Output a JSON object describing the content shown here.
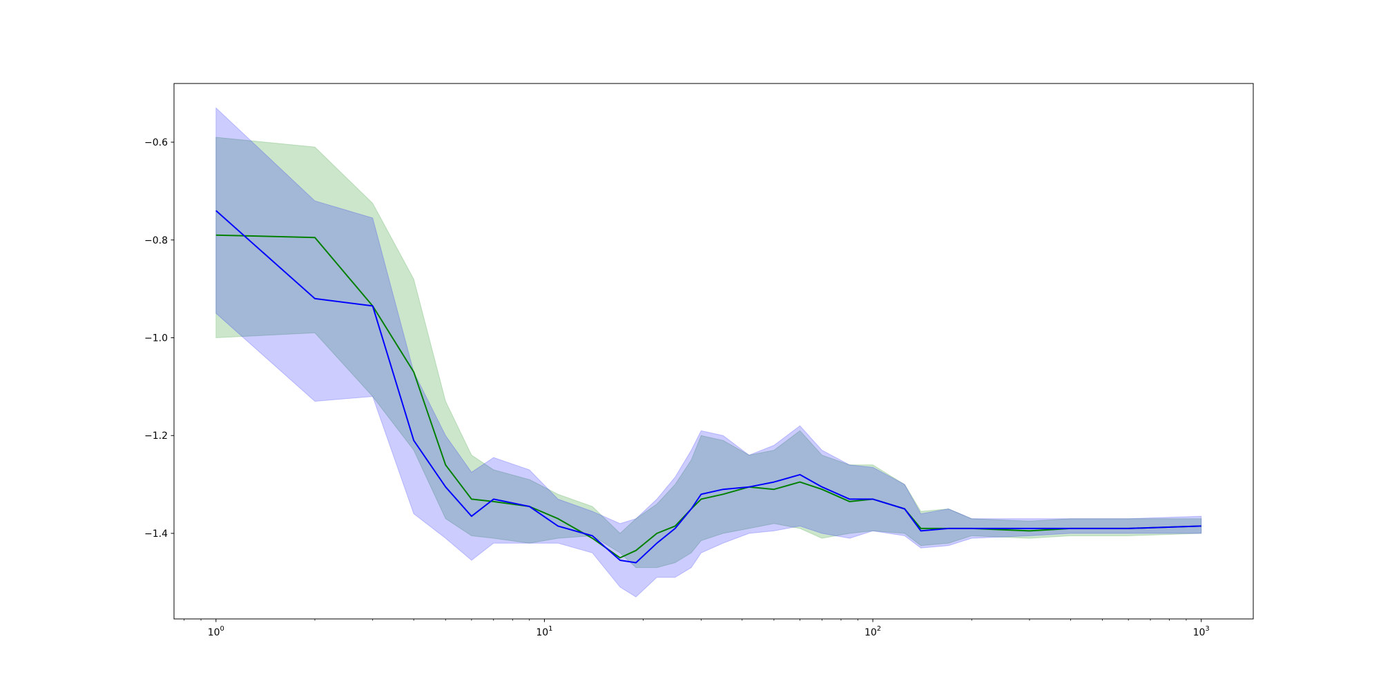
{
  "chart_data": {
    "type": "line",
    "title": "",
    "xlabel": "",
    "ylabel": "",
    "x_scale": "log",
    "xlim": [
      0.745,
      1440
    ],
    "ylim": [
      -1.575,
      -0.48
    ],
    "grid": false,
    "x_ticks": [
      {
        "value": 1,
        "base": "10",
        "exp": "0"
      },
      {
        "value": 10,
        "base": "10",
        "exp": "1"
      },
      {
        "value": 100,
        "base": "10",
        "exp": "2"
      },
      {
        "value": 1000,
        "base": "10",
        "exp": "3"
      }
    ],
    "y_ticks": [
      {
        "value": -0.6,
        "label": "−0.6"
      },
      {
        "value": -0.8,
        "label": "−0.8"
      },
      {
        "value": -1.0,
        "label": "−1.0"
      },
      {
        "value": -1.2,
        "label": "−1.2"
      },
      {
        "value": -1.4,
        "label": "−1.4"
      }
    ],
    "series": [
      {
        "color": "#008000",
        "band_color": "#008000",
        "x": [
          1,
          2,
          3,
          4,
          5,
          6,
          7,
          9,
          11,
          14,
          17,
          19,
          22,
          25,
          28,
          30,
          35,
          42,
          50,
          60,
          70,
          85,
          100,
          125,
          140,
          170,
          200,
          300,
          400,
          600,
          1000
        ],
        "y": [
          -0.79,
          -0.795,
          -0.935,
          -1.07,
          -1.26,
          -1.33,
          -1.335,
          -1.345,
          -1.37,
          -1.41,
          -1.45,
          -1.435,
          -1.4,
          -1.385,
          -1.35,
          -1.33,
          -1.32,
          -1.305,
          -1.31,
          -1.295,
          -1.31,
          -1.335,
          -1.33,
          -1.35,
          -1.39,
          -1.39,
          -1.39,
          -1.395,
          -1.39,
          -1.39,
          -1.385
        ],
        "lower": [
          -1.0,
          -0.99,
          -1.12,
          -1.23,
          -1.37,
          -1.405,
          -1.41,
          -1.42,
          -1.41,
          -1.405,
          -1.44,
          -1.47,
          -1.47,
          -1.46,
          -1.44,
          -1.415,
          -1.4,
          -1.39,
          -1.38,
          -1.39,
          -1.41,
          -1.4,
          -1.395,
          -1.4,
          -1.425,
          -1.42,
          -1.405,
          -1.41,
          -1.405,
          -1.405,
          -1.4
        ],
        "upper": [
          -0.59,
          -0.61,
          -0.725,
          -0.88,
          -1.13,
          -1.24,
          -1.27,
          -1.29,
          -1.32,
          -1.345,
          -1.4,
          -1.37,
          -1.34,
          -1.3,
          -1.25,
          -1.2,
          -1.21,
          -1.24,
          -1.23,
          -1.19,
          -1.24,
          -1.26,
          -1.26,
          -1.3,
          -1.355,
          -1.35,
          -1.37,
          -1.375,
          -1.37,
          -1.37,
          -1.37
        ]
      },
      {
        "color": "#0000ff",
        "band_color": "#0000ff",
        "x": [
          1,
          2,
          3,
          4,
          5,
          6,
          7,
          9,
          11,
          14,
          17,
          19,
          22,
          25,
          28,
          30,
          35,
          42,
          50,
          60,
          70,
          85,
          100,
          125,
          140,
          170,
          200,
          300,
          400,
          600,
          1000
        ],
        "y": [
          -0.74,
          -0.92,
          -0.935,
          -1.21,
          -1.305,
          -1.365,
          -1.33,
          -1.345,
          -1.385,
          -1.405,
          -1.455,
          -1.46,
          -1.42,
          -1.39,
          -1.35,
          -1.32,
          -1.31,
          -1.305,
          -1.295,
          -1.28,
          -1.305,
          -1.33,
          -1.33,
          -1.35,
          -1.395,
          -1.39,
          -1.39,
          -1.39,
          -1.39,
          -1.39,
          -1.385
        ],
        "lower": [
          -0.95,
          -1.13,
          -1.12,
          -1.36,
          -1.41,
          -1.455,
          -1.42,
          -1.42,
          -1.42,
          -1.44,
          -1.51,
          -1.53,
          -1.49,
          -1.49,
          -1.47,
          -1.44,
          -1.42,
          -1.4,
          -1.395,
          -1.385,
          -1.4,
          -1.41,
          -1.395,
          -1.405,
          -1.43,
          -1.425,
          -1.41,
          -1.405,
          -1.4,
          -1.4,
          -1.4
        ],
        "upper": [
          -0.53,
          -0.72,
          -0.755,
          -1.07,
          -1.2,
          -1.275,
          -1.245,
          -1.27,
          -1.33,
          -1.355,
          -1.38,
          -1.37,
          -1.33,
          -1.285,
          -1.23,
          -1.19,
          -1.2,
          -1.24,
          -1.22,
          -1.18,
          -1.23,
          -1.26,
          -1.265,
          -1.3,
          -1.36,
          -1.35,
          -1.37,
          -1.37,
          -1.37,
          -1.37,
          -1.365
        ]
      }
    ]
  }
}
